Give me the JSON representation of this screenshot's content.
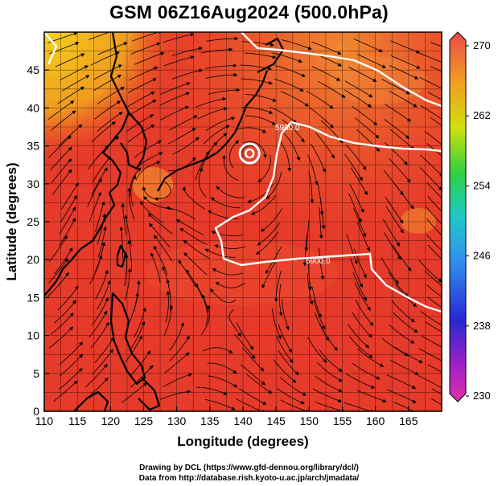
{
  "title": "GSM 06Z16Aug2024 (500.0hPa)",
  "map": {
    "xlabel": "Longitude (degrees)",
    "ylabel": "Latitude  (degrees)",
    "x_ticks": [
      "110",
      "115",
      "120",
      "125",
      "130",
      "135",
      "140",
      "145",
      "150",
      "155",
      "160",
      "165"
    ],
    "y_ticks": [
      "0",
      "5",
      "10",
      "15",
      "20",
      "25",
      "30",
      "35",
      "40",
      "45"
    ],
    "lon_range": [
      110,
      170
    ],
    "lat_range": [
      0,
      50
    ],
    "field": "temperature (K) shaded, streamlines, 5900 m height contour",
    "contour_labels": [
      "5900.0",
      "5900.0"
    ],
    "typhoon_center": {
      "lon": 141,
      "lat": 34
    }
  },
  "colorbar": {
    "ticks": [
      "270",
      "262",
      "254",
      "246",
      "238",
      "230"
    ],
    "colors": [
      "#ec4a4a",
      "#f0a020",
      "#d8e010",
      "#30d030",
      "#20c0c0",
      "#3090f0",
      "#2020c0",
      "#a010c0",
      "#e020a0"
    ]
  },
  "credit": {
    "line1": "Drawing by DCL (https://www.gfd-dennou.org/library/dcl/)",
    "line2": "Data from http://database.rish.kyoto-u.ac.jp/arch/jmadata/"
  }
}
